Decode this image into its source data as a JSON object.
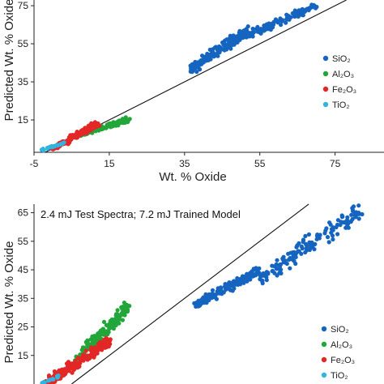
{
  "colors": {
    "SiO2": "#1565c0",
    "Al2O3": "#22a63a",
    "Fe2O3": "#e32626",
    "TiO2": "#33b4e0",
    "line": "#111111",
    "axis": "#222222"
  },
  "chart_data": [
    {
      "type": "scatter",
      "title": "",
      "xlabel": "Wt. % Oxide",
      "ylabel": "Predicted Wt. % Oxide",
      "xlim": [
        -5,
        88
      ],
      "ylim": [
        -2,
        78
      ],
      "x_ticks": [
        -5,
        15,
        35,
        55,
        75
      ],
      "y_ticks": [
        15,
        35,
        55,
        75
      ],
      "grid": false,
      "legend_position": "right",
      "one_to_one_line": true,
      "series": [
        {
          "name": "SiO₂",
          "color_key": "SiO2",
          "clusters": [
            {
              "x_range": [
                37,
                52
              ],
              "y_range": [
                42,
                62
              ],
              "count": 200,
              "count_note": "approx"
            },
            {
              "x_range": [
                52,
                70
              ],
              "y_range": [
                60,
                75
              ],
              "count": 110,
              "count_note": "approx"
            }
          ]
        },
        {
          "name": "Al₂O₃",
          "color_key": "Al2O3",
          "clusters": [
            {
              "x_range": [
                5,
                20
              ],
              "y_range": [
                6,
                15
              ],
              "count": 150,
              "count_note": "approx"
            }
          ]
        },
        {
          "name": "Fe₂O₃",
          "color_key": "Fe2O3",
          "clusters": [
            {
              "x_range": [
                0,
                12
              ],
              "y_range": [
                0,
                13
              ],
              "count": 170,
              "count_note": "approx"
            }
          ]
        },
        {
          "name": "TiO₂",
          "color_key": "TiO2",
          "clusters": [
            {
              "x_range": [
                -3,
                3
              ],
              "y_range": [
                -1,
                3
              ],
              "count": 30,
              "count_note": "approx"
            }
          ]
        }
      ]
    },
    {
      "type": "scatter",
      "title": "2.4 mJ Test Spectra; 7.2 mJ Trained Model",
      "xlabel": "",
      "ylabel": "Predicted Wt. % Oxide",
      "xlim": [
        -5,
        88
      ],
      "ylim": [
        5,
        68
      ],
      "y_ticks": [
        15,
        25,
        35,
        45,
        55,
        65
      ],
      "grid": false,
      "legend_position": "bottom-right",
      "one_to_one_line": true,
      "series": [
        {
          "name": "SiO₂",
          "color_key": "SiO2",
          "clusters": [
            {
              "x_range": [
                38,
                55
              ],
              "y_range": [
                33,
                45
              ],
              "count": 160,
              "count_note": "approx"
            },
            {
              "x_range": [
                55,
                82
              ],
              "y_range": [
                42,
                66
              ],
              "count": 150,
              "count_note": "approx"
            }
          ]
        },
        {
          "name": "Al₂O₃",
          "color_key": "Al2O3",
          "clusters": [
            {
              "x_range": [
                5,
                20
              ],
              "y_range": [
                12,
                32
              ],
              "count": 150,
              "count_note": "approx"
            }
          ]
        },
        {
          "name": "Fe₂O₃",
          "color_key": "Fe2O3",
          "clusters": [
            {
              "x_range": [
                -2,
                15
              ],
              "y_range": [
                5,
                20
              ],
              "count": 220,
              "count_note": "approx"
            }
          ]
        },
        {
          "name": "TiO₂",
          "color_key": "TiO2",
          "clusters": [
            {
              "x_range": [
                -3,
                2
              ],
              "y_range": [
                5,
                8
              ],
              "count": 15,
              "count_note": "approx"
            }
          ]
        }
      ]
    }
  ]
}
